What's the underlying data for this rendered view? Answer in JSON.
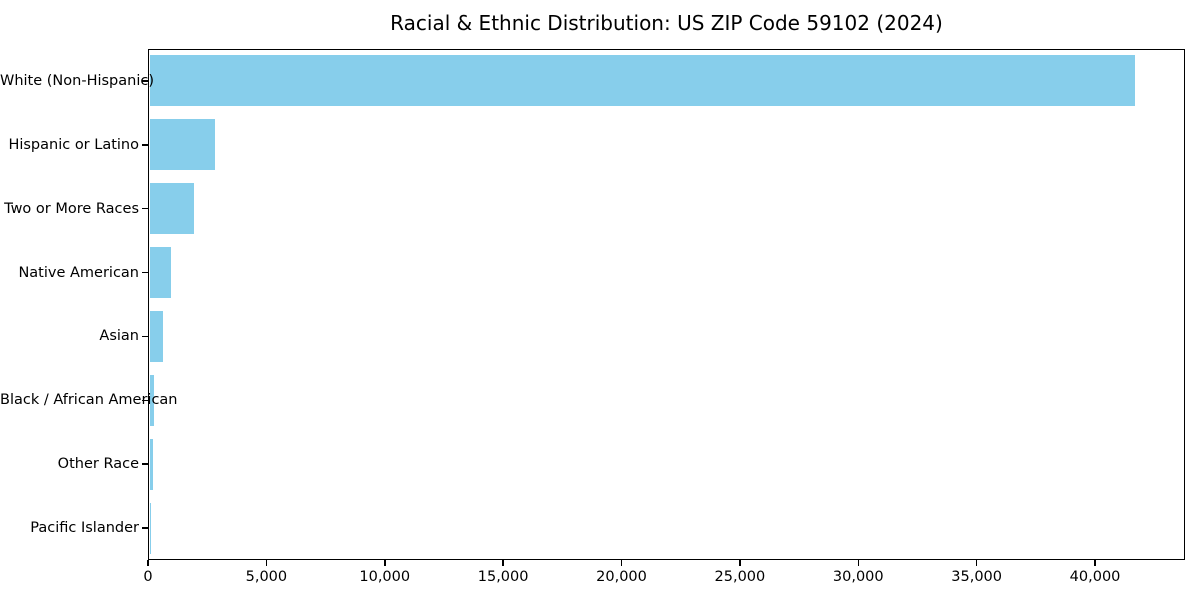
{
  "chart_data": {
    "type": "bar",
    "orientation": "horizontal",
    "title": "Racial & Ethnic Distribution: US ZIP Code 59102 (2024)",
    "categories": [
      "White (Non-Hispanic)",
      "Hispanic or Latino",
      "Two or More Races",
      "Native American",
      "Asian",
      "Black / African American",
      "Other Race",
      "Pacific Islander"
    ],
    "values": [
      41700,
      2790,
      1900,
      930,
      550,
      170,
      130,
      20
    ],
    "bar_color": "#87CEEB",
    "xlabel": "",
    "ylabel": "",
    "xlim": [
      0,
      43800
    ],
    "xticks": [
      0,
      5000,
      10000,
      15000,
      20000,
      25000,
      30000,
      35000,
      40000
    ],
    "xtick_labels": [
      "0",
      "5,000",
      "10,000",
      "15,000",
      "20,000",
      "25,000",
      "30,000",
      "35,000",
      "40,000"
    ],
    "grid": false,
    "legend": null,
    "bar_height_fraction": 0.8
  }
}
